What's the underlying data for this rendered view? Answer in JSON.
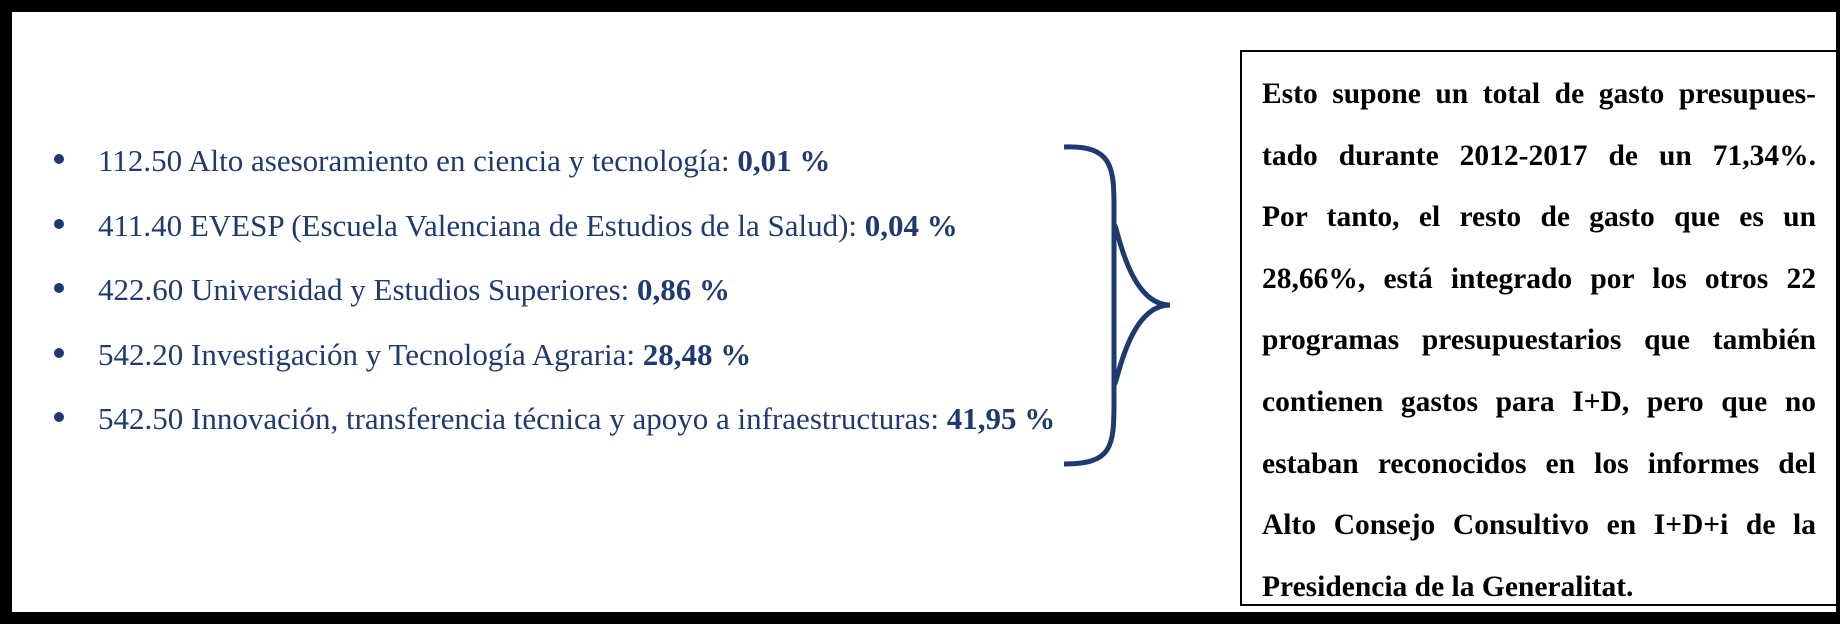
{
  "items": [
    {
      "label": "112.50 Alto asesoramiento en ciencia y tecnología:",
      "value": "0,01 %"
    },
    {
      "label": "411.40 EVESP (Escuela Valenciana de Estudios de la Salud):",
      "value": "0,04 %"
    },
    {
      "label": "422.60 Universidad y Estudios Superiores:",
      "value": "0,86 %"
    },
    {
      "label": "542.20 Investigación y Tecnología Agraria:",
      "value": "28,48 %"
    },
    {
      "label": "542.50 Innovación, transferencia técnica y apoyo a infraestructuras:",
      "value": "41,95 %"
    }
  ],
  "summary": {
    "lines": [
      "Esto supone un total de gasto presupues-",
      "tado durante 2012-2017 de un 71,34%.",
      "Por tanto, el resto de gasto que es un",
      "28,66%, está integrado por los otros 22",
      "programas presupuestarios que también",
      "contienen gastos para I+D, pero que no",
      "estaban reconocidos en los informes del",
      "Alto Consejo Consultivo en I+D+i de la",
      "Presidencia de la Generalitat."
    ]
  }
}
